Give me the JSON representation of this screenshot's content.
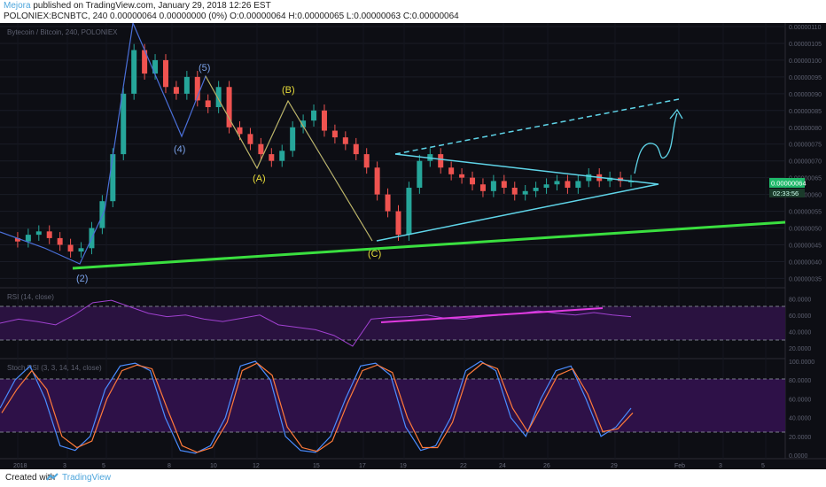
{
  "header": {
    "author": "Mejora",
    "published": "published on TradingView.com, January 29, 2018 12:26 EST",
    "ticker_line": "POLONIEX:BCNBTC, 240  0.00000064 0.00000000 (0%) O:0.00000064 H:0.00000065 L:0.00000063 C:0.00000064"
  },
  "footer": {
    "created_with": "Created with",
    "brand": "TradingView"
  },
  "chart_data": [
    {
      "type": "candlestick",
      "title": "Bytecoin / Bitcoin, 240, POLONIEX",
      "ylim": [
        3.3e-07,
        1.1e-06
      ],
      "y_ticks": [
        "0.00000110",
        "0.00000105",
        "0.00000100",
        "0.00000095",
        "0.00000090",
        "0.00000085",
        "0.00000080",
        "0.00000075",
        "0.00000070",
        "0.00000065",
        "0.00000060",
        "0.00000055",
        "0.00000050",
        "0.00000045",
        "0.00000040",
        "0.00000035"
      ],
      "x_ticks": [
        "2018",
        "3",
        "5",
        "8",
        "10",
        "12",
        "15",
        "17",
        "19",
        "22",
        "24",
        "26",
        "29",
        "Feb",
        "3",
        "5"
      ],
      "last_price": "0.00000064",
      "countdown": "02:33:56",
      "price_path": [
        4.7e-07,
        4.6e-07,
        4.8e-07,
        4.9e-07,
        4.7e-07,
        4.5e-07,
        4.3e-07,
        4.4e-07,
        5e-07,
        5.8e-07,
        7.2e-07,
        9e-07,
        1.03e-06,
        9.6e-07,
        1e-06,
        9.2e-07,
        9e-07,
        9.5e-07,
        8.8e-07,
        8.6e-07,
        9.2e-07,
        8e-07,
        7.8e-07,
        7.5e-07,
        7.2e-07,
        7e-07,
        7.3e-07,
        8e-07,
        8.2e-07,
        8.5e-07,
        7.9e-07,
        7.7e-07,
        7.5e-07,
        7.2e-07,
        6.8e-07,
        6e-07,
        5.5e-07,
        4.8e-07,
        6.2e-07,
        7e-07,
        7.2e-07,
        6.8e-07,
        6.6e-07,
        6.5e-07,
        6.3e-07,
        6.1e-07,
        6.4e-07,
        6.2e-07,
        6e-07,
        6.1e-07,
        6.2e-07,
        6.3e-07,
        6.4e-07,
        6.2e-07,
        6.4e-07,
        6.6e-07,
        6.4e-07,
        6.5e-07,
        6.4e-07,
        6.4e-07
      ],
      "annotations": [
        "(2)",
        "(4)",
        "(5)",
        "(A)",
        "(B)",
        "(C)"
      ]
    },
    {
      "type": "line",
      "title": "RSI (14, close)",
      "y_ticks": [
        "80.0000",
        "60.0000",
        "40.0000",
        "20.0000"
      ],
      "series": [
        {
          "values": [
            50,
            55,
            52,
            48,
            60,
            75,
            78,
            70,
            62,
            58,
            60,
            55,
            52,
            56,
            60,
            48,
            45,
            42,
            35,
            22,
            55,
            57,
            58,
            60,
            56,
            55,
            58,
            60,
            62,
            65,
            62,
            60,
            63,
            60,
            58
          ]
        }
      ]
    },
    {
      "type": "line",
      "title": "Stoch RSI (3, 3, 14, 14, close)",
      "y_ticks": [
        "100.0000",
        "80.0000",
        "60.0000",
        "40.0000",
        "20.0000",
        "0.0000"
      ],
      "series": [
        {
          "values": [
            50,
            80,
            95,
            60,
            10,
            5,
            20,
            70,
            95,
            98,
            90,
            40,
            5,
            2,
            10,
            40,
            95,
            100,
            80,
            20,
            5,
            3,
            20,
            60,
            95,
            98,
            85,
            30,
            5,
            10,
            40,
            90,
            100,
            90,
            40,
            20,
            60,
            90,
            95,
            60,
            20,
            30,
            50
          ]
        },
        {
          "values": [
            45,
            70,
            90,
            70,
            20,
            8,
            15,
            60,
            90,
            96,
            92,
            50,
            10,
            3,
            8,
            35,
            90,
            98,
            85,
            30,
            8,
            4,
            15,
            55,
            90,
            96,
            88,
            40,
            8,
            8,
            35,
            85,
            98,
            92,
            50,
            25,
            55,
            85,
            92,
            65,
            25,
            28,
            45
          ]
        }
      ]
    }
  ]
}
